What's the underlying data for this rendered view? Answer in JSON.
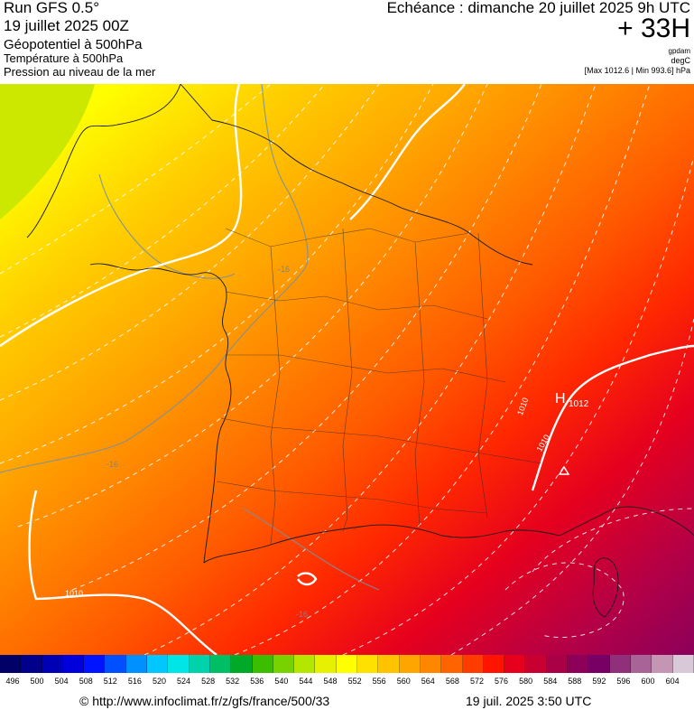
{
  "header": {
    "run_title": "Run GFS 0.5°",
    "run_date": "19 juillet 2025 00Z",
    "layer_1": "Géopotentiel à 500hPa",
    "layer_2": "Température à 500hPa",
    "layer_3": "Pression au niveau de la mer",
    "echeance": "Echéance : dimanche 20 juillet 2025 9h UTC",
    "offset": "+ 33H",
    "unit_1": "gpdam",
    "unit_2": "degC",
    "maxmin": "[Max 1012.6 | Min 993.6] hPa"
  },
  "map": {
    "isobar_labels": [
      "1010",
      "1010",
      "1010"
    ],
    "isotherm_labels": [
      "-16",
      "-16",
      "-16"
    ],
    "high_label": "H",
    "high_value": "1012"
  },
  "legend": {
    "values": [
      "496",
      "500",
      "504",
      "508",
      "512",
      "516",
      "520",
      "524",
      "528",
      "532",
      "536",
      "540",
      "544",
      "548",
      "552",
      "556",
      "560",
      "564",
      "568",
      "572",
      "576",
      "580",
      "584",
      "588",
      "592",
      "596",
      "600",
      "604"
    ],
    "colors": [
      "#000066",
      "#00008a",
      "#0000b4",
      "#0000dc",
      "#0014ff",
      "#0050ff",
      "#0090ff",
      "#00c8ff",
      "#00e6e6",
      "#00d2aa",
      "#00be64",
      "#00aa28",
      "#3cbe00",
      "#78d200",
      "#b4e600",
      "#e6f000",
      "#ffff00",
      "#ffe100",
      "#ffc300",
      "#ffa500",
      "#ff8700",
      "#ff6400",
      "#ff3c00",
      "#ff1400",
      "#e6001e",
      "#c80032",
      "#aa0046",
      "#8c005a",
      "#780064",
      "#90307a",
      "#a86496",
      "#c496b4",
      "#d8c8d8"
    ]
  },
  "footer": {
    "source": "© http://www.infoclimat.fr/z/gfs/france/500/33",
    "generated": "19 juil. 2025  3:50 UTC"
  }
}
